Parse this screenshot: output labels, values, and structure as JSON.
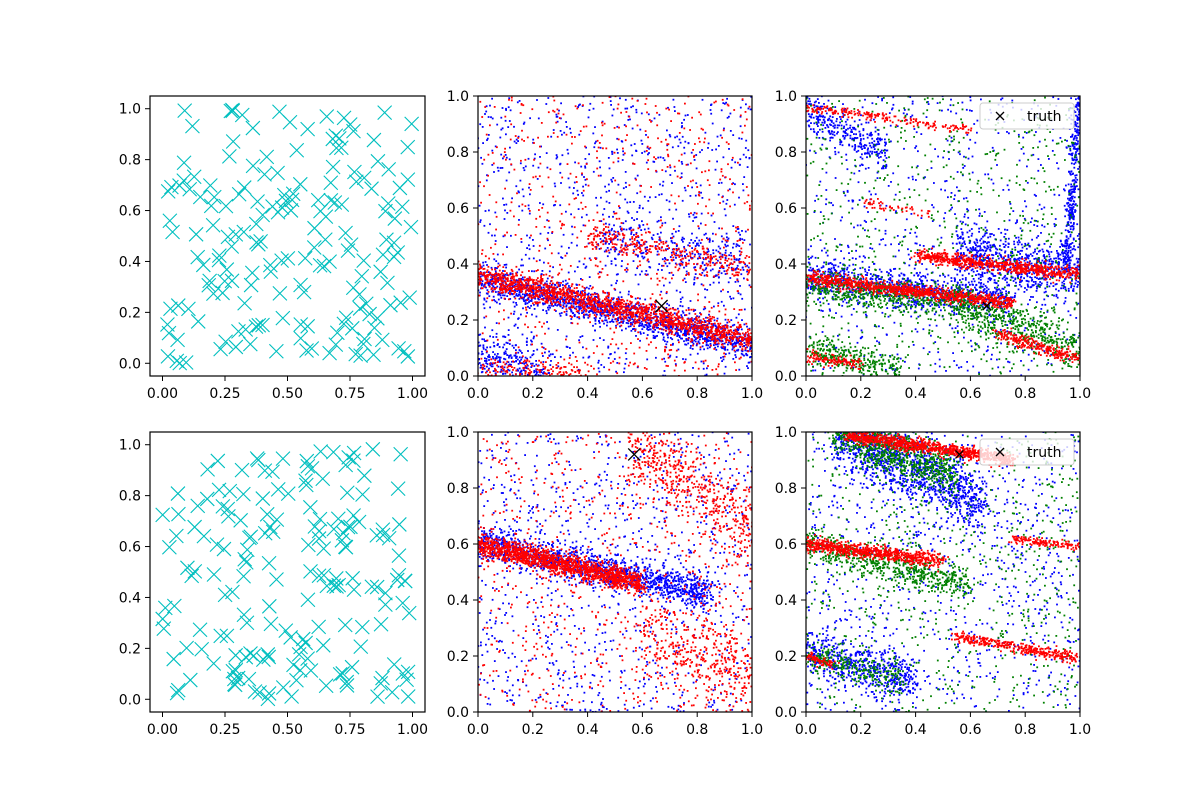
{
  "chart_data": [
    {
      "type": "scatter",
      "name": "top-left",
      "marker": "x",
      "xlim": [
        -0.05,
        1.05
      ],
      "ylim": [
        -0.05,
        1.05
      ],
      "xticks": [
        "0.00",
        "0.25",
        "0.50",
        "0.75",
        "1.00"
      ],
      "yticks": [
        "0.0",
        "0.2",
        "0.4",
        "0.6",
        "0.8",
        "1.0"
      ],
      "series": [
        {
          "color": "#00bfbf",
          "kind": "uniform",
          "count": 180,
          "seed": 11,
          "size": "large"
        }
      ]
    },
    {
      "type": "scatter",
      "name": "top-middle",
      "xlim": [
        0,
        1
      ],
      "ylim": [
        0,
        1
      ],
      "xticks": [
        "0.0",
        "0.2",
        "0.4",
        "0.6",
        "0.8",
        "1.0"
      ],
      "yticks": [
        "0.0",
        "0.2",
        "0.4",
        "0.6",
        "0.8",
        "1.0"
      ],
      "truth": {
        "x": 0.67,
        "y": 0.25,
        "size": "large"
      },
      "series": [
        {
          "color": "#0000ff",
          "kind": "band",
          "x0": 0.0,
          "y0": 0.35,
          "x1": 1.0,
          "y1": 0.11,
          "count": 1400,
          "width": 0.03,
          "seed": 21
        },
        {
          "color": "#0000ff",
          "kind": "band",
          "x0": 0.0,
          "y0": 0.09,
          "x1": 0.25,
          "y1": 0.0,
          "count": 250,
          "width": 0.04,
          "seed": 22
        },
        {
          "color": "#0000ff",
          "kind": "band",
          "x0": 0.45,
          "y0": 0.5,
          "x1": 1.0,
          "y1": 0.4,
          "count": 300,
          "width": 0.05,
          "seed": 23
        },
        {
          "color": "#0000ff",
          "kind": "uniform",
          "count": 900,
          "seed": 24
        },
        {
          "color": "#ff0000",
          "kind": "band",
          "x0": 0.0,
          "y0": 0.36,
          "x1": 1.0,
          "y1": 0.13,
          "count": 1500,
          "width": 0.022,
          "seed": 31
        },
        {
          "color": "#ff0000",
          "kind": "band",
          "x0": 0.4,
          "y0": 0.5,
          "x1": 1.0,
          "y1": 0.38,
          "count": 300,
          "width": 0.025,
          "seed": 32
        },
        {
          "color": "#ff0000",
          "kind": "band",
          "x0": 0.0,
          "y0": 0.03,
          "x1": 0.4,
          "y1": 0.0,
          "count": 150,
          "width": 0.02,
          "seed": 33
        },
        {
          "color": "#ff0000",
          "kind": "uniform",
          "count": 700,
          "seed": 34
        }
      ]
    },
    {
      "type": "scatter",
      "name": "top-right",
      "xlim": [
        0,
        1
      ],
      "ylim": [
        0,
        1
      ],
      "xticks": [
        "0.0",
        "0.2",
        "0.4",
        "0.6",
        "0.8",
        "1.0"
      ],
      "yticks": [
        "0.0",
        "0.2",
        "0.4",
        "0.6",
        "0.8",
        "1.0"
      ],
      "truth": {
        "x": 0.66,
        "y": 0.25,
        "size": "small"
      },
      "legend": {
        "label": "truth",
        "position": "top-right"
      },
      "series": [
        {
          "color": "#0000ff",
          "kind": "band",
          "x0": 0.0,
          "y0": 0.35,
          "x1": 0.75,
          "y1": 0.27,
          "count": 900,
          "width": 0.035,
          "seed": 41
        },
        {
          "color": "#0000ff",
          "kind": "band",
          "x0": 0.55,
          "y0": 0.45,
          "x1": 1.0,
          "y1": 0.36,
          "count": 700,
          "width": 0.05,
          "seed": 42
        },
        {
          "color": "#0000ff",
          "kind": "band",
          "x0": 0.95,
          "y0": 0.4,
          "x1": 1.0,
          "y1": 1.0,
          "count": 350,
          "width": 0.02,
          "seed": 43
        },
        {
          "color": "#0000ff",
          "kind": "band",
          "x0": 0.0,
          "y0": 0.95,
          "x1": 0.3,
          "y1": 0.8,
          "count": 300,
          "width": 0.04,
          "seed": 44
        },
        {
          "color": "#0000ff",
          "kind": "uniform",
          "count": 700,
          "seed": 45
        },
        {
          "color": "#008000",
          "kind": "band",
          "x0": 0.0,
          "y0": 0.32,
          "x1": 0.6,
          "y1": 0.26,
          "count": 600,
          "width": 0.03,
          "seed": 51
        },
        {
          "color": "#008000",
          "kind": "band",
          "x0": 0.55,
          "y0": 0.25,
          "x1": 1.0,
          "y1": 0.1,
          "count": 500,
          "width": 0.04,
          "seed": 52
        },
        {
          "color": "#008000",
          "kind": "band",
          "x0": 0.0,
          "y0": 0.1,
          "x1": 0.35,
          "y1": 0.02,
          "count": 300,
          "width": 0.03,
          "seed": 53
        },
        {
          "color": "#008000",
          "kind": "uniform",
          "count": 700,
          "seed": 54
        },
        {
          "color": "#ff0000",
          "kind": "band",
          "x0": 0.0,
          "y0": 0.35,
          "x1": 0.75,
          "y1": 0.26,
          "count": 900,
          "width": 0.012,
          "seed": 61
        },
        {
          "color": "#ff0000",
          "kind": "band",
          "x0": 0.4,
          "y0": 0.43,
          "x1": 1.0,
          "y1": 0.36,
          "count": 700,
          "width": 0.012,
          "seed": 62
        },
        {
          "color": "#ff0000",
          "kind": "band",
          "x0": 0.0,
          "y0": 0.96,
          "x1": 0.6,
          "y1": 0.88,
          "count": 200,
          "width": 0.008,
          "seed": 63
        },
        {
          "color": "#ff0000",
          "kind": "band",
          "x0": 0.0,
          "y0": 0.07,
          "x1": 0.2,
          "y1": 0.04,
          "count": 120,
          "width": 0.01,
          "seed": 64
        },
        {
          "color": "#ff0000",
          "kind": "band",
          "x0": 0.7,
          "y0": 0.15,
          "x1": 1.0,
          "y1": 0.06,
          "count": 260,
          "width": 0.012,
          "seed": 65
        },
        {
          "color": "#ff0000",
          "kind": "band",
          "x0": 0.2,
          "y0": 0.62,
          "x1": 0.45,
          "y1": 0.58,
          "count": 50,
          "width": 0.008,
          "seed": 66
        }
      ]
    },
    {
      "type": "scatter",
      "name": "bottom-left",
      "marker": "x",
      "xlim": [
        -0.05,
        1.05
      ],
      "ylim": [
        -0.05,
        1.05
      ],
      "xticks": [
        "0.00",
        "0.25",
        "0.50",
        "0.75",
        "1.00"
      ],
      "yticks": [
        "0.0",
        "0.2",
        "0.4",
        "0.6",
        "0.8",
        "1.0"
      ],
      "series": [
        {
          "color": "#00bfbf",
          "kind": "uniform",
          "count": 180,
          "seed": 71,
          "size": "large"
        }
      ]
    },
    {
      "type": "scatter",
      "name": "bottom-middle",
      "xlim": [
        0,
        1
      ],
      "ylim": [
        0,
        1
      ],
      "xticks": [
        "0.0",
        "0.2",
        "0.4",
        "0.6",
        "0.8",
        "1.0"
      ],
      "yticks": [
        "0.0",
        "0.2",
        "0.4",
        "0.6",
        "0.8",
        "1.0"
      ],
      "truth": {
        "x": 0.57,
        "y": 0.92,
        "size": "large"
      },
      "series": [
        {
          "color": "#0000ff",
          "kind": "band",
          "x0": 0.0,
          "y0": 0.61,
          "x1": 0.85,
          "y1": 0.42,
          "count": 1300,
          "width": 0.03,
          "seed": 81
        },
        {
          "color": "#0000ff",
          "kind": "uniform",
          "count": 900,
          "seed": 82
        },
        {
          "color": "#ff0000",
          "kind": "band",
          "x0": 0.0,
          "y0": 0.6,
          "x1": 0.6,
          "y1": 0.46,
          "count": 1500,
          "width": 0.02,
          "seed": 91
        },
        {
          "color": "#ff0000",
          "kind": "band",
          "x0": 0.55,
          "y0": 0.95,
          "x1": 1.0,
          "y1": 0.65,
          "count": 500,
          "width": 0.07,
          "seed": 92
        },
        {
          "color": "#ff0000",
          "kind": "band",
          "x0": 0.6,
          "y0": 0.3,
          "x1": 1.0,
          "y1": 0.12,
          "count": 400,
          "width": 0.08,
          "seed": 93
        },
        {
          "color": "#ff0000",
          "kind": "uniform",
          "count": 700,
          "seed": 94
        }
      ]
    },
    {
      "type": "scatter",
      "name": "bottom-right",
      "xlim": [
        0,
        1
      ],
      "ylim": [
        0,
        1
      ],
      "xticks": [
        "0.0",
        "0.2",
        "0.4",
        "0.6",
        "0.8",
        "1.0"
      ],
      "yticks": [
        "0.0",
        "0.2",
        "0.4",
        "0.6",
        "0.8",
        "1.0"
      ],
      "truth": {
        "x": 0.56,
        "y": 0.92,
        "size": "small"
      },
      "legend": {
        "label": "truth",
        "position": "top-right"
      },
      "series": [
        {
          "color": "#0000ff",
          "kind": "band",
          "x0": 0.1,
          "y0": 1.0,
          "x1": 0.65,
          "y1": 0.75,
          "count": 1200,
          "width": 0.06,
          "seed": 101
        },
        {
          "color": "#0000ff",
          "kind": "band",
          "x0": 0.0,
          "y0": 0.22,
          "x1": 0.4,
          "y1": 0.1,
          "count": 500,
          "width": 0.04,
          "seed": 102
        },
        {
          "color": "#0000ff",
          "kind": "uniform",
          "count": 900,
          "seed": 103
        },
        {
          "color": "#008000",
          "kind": "band",
          "x0": 0.1,
          "y0": 1.0,
          "x1": 0.55,
          "y1": 0.85,
          "count": 800,
          "width": 0.04,
          "seed": 111
        },
        {
          "color": "#008000",
          "kind": "band",
          "x0": 0.0,
          "y0": 0.6,
          "x1": 0.6,
          "y1": 0.45,
          "count": 600,
          "width": 0.03,
          "seed": 112
        },
        {
          "color": "#008000",
          "kind": "band",
          "x0": 0.0,
          "y0": 0.2,
          "x1": 0.35,
          "y1": 0.12,
          "count": 250,
          "width": 0.03,
          "seed": 113
        },
        {
          "color": "#008000",
          "kind": "uniform",
          "count": 700,
          "seed": 114
        },
        {
          "color": "#ff0000",
          "kind": "band",
          "x0": 0.15,
          "y0": 0.99,
          "x1": 0.75,
          "y1": 0.9,
          "count": 1000,
          "width": 0.012,
          "seed": 121
        },
        {
          "color": "#ff0000",
          "kind": "band",
          "x0": 0.0,
          "y0": 0.6,
          "x1": 0.5,
          "y1": 0.54,
          "count": 700,
          "width": 0.012,
          "seed": 122
        },
        {
          "color": "#ff0000",
          "kind": "band",
          "x0": 0.55,
          "y0": 0.27,
          "x1": 1.0,
          "y1": 0.19,
          "count": 350,
          "width": 0.01,
          "seed": 123
        },
        {
          "color": "#ff0000",
          "kind": "band",
          "x0": 0.75,
          "y0": 0.62,
          "x1": 1.0,
          "y1": 0.59,
          "count": 140,
          "width": 0.008,
          "seed": 124
        },
        {
          "color": "#ff0000",
          "kind": "band",
          "x0": 0.0,
          "y0": 0.2,
          "x1": 0.1,
          "y1": 0.17,
          "count": 70,
          "width": 0.008,
          "seed": 125
        }
      ]
    }
  ]
}
